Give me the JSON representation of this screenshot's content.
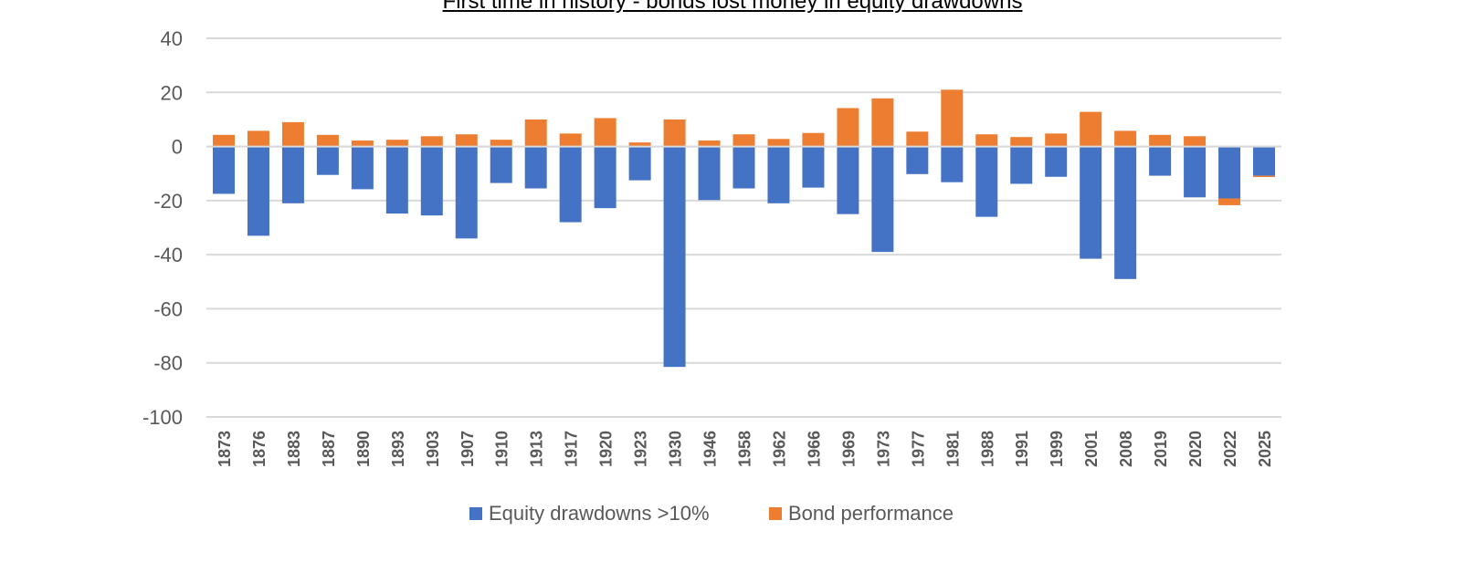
{
  "chart_data": {
    "type": "bar",
    "stacked": true,
    "title": "First time in history - bonds lost money in equity drawdowns",
    "categories": [
      "1873",
      "1876",
      "1883",
      "1887",
      "1890",
      "1893",
      "1903",
      "1907",
      "1910",
      "1913",
      "1917",
      "1920",
      "1923",
      "1930",
      "1946",
      "1958",
      "1962",
      "1966",
      "1969",
      "1973",
      "1977",
      "1981",
      "1988",
      "1991",
      "1999",
      "2001",
      "2008",
      "2019",
      "2020",
      "2022",
      "2025"
    ],
    "series": [
      {
        "name": "Equity drawdowns >10%",
        "color": "#4472C4",
        "values": [
          -17.5,
          -33,
          -21,
          -10.5,
          -15.8,
          -24.8,
          -25.5,
          -34,
          -13.5,
          -15.5,
          -28,
          -22.8,
          -12.5,
          -81.5,
          -19.8,
          -15.5,
          -21,
          -15.2,
          -25,
          -39,
          -10.2,
          -13.2,
          -26,
          -13.8,
          -11.2,
          -41.5,
          -49,
          -10.8,
          -18.8,
          -19.2,
          -10.8
        ]
      },
      {
        "name": "Bond performance",
        "color": "#ED7D31",
        "values": [
          4.3,
          5.8,
          9,
          4.3,
          2.2,
          2.5,
          3.8,
          4.5,
          2.5,
          10,
          4.8,
          10.5,
          1.5,
          10,
          2.2,
          4.5,
          2.8,
          5,
          14.2,
          17.8,
          5.5,
          21,
          4.5,
          3.5,
          4.8,
          12.8,
          5.8,
          4.3,
          3.8,
          -2.5,
          -0.5
        ]
      }
    ],
    "yticks": [
      "40",
      "20",
      "0",
      "-20",
      "-40",
      "-60",
      "-80",
      "-100"
    ],
    "ylim": [
      -100,
      40
    ],
    "grid": true,
    "legend_position": "bottom"
  }
}
